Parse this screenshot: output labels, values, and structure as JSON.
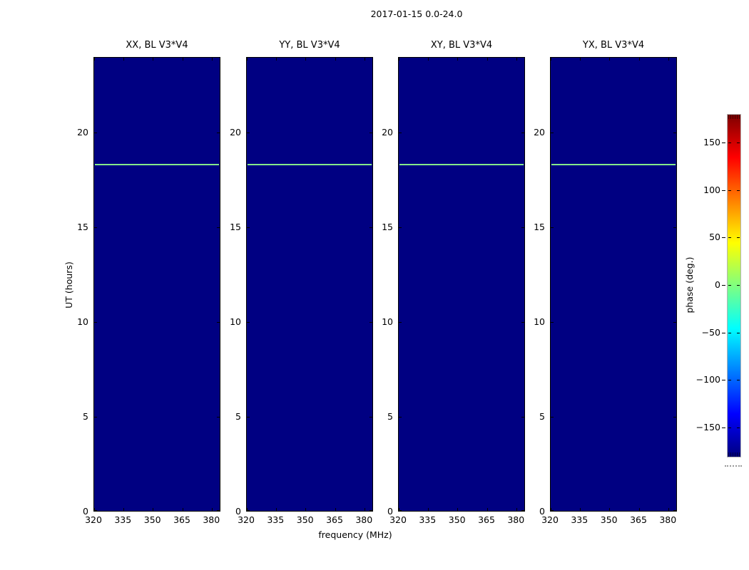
{
  "figure": {
    "title": "2017-01-15 0.0-24.0",
    "xlabel": "frequency (MHz)",
    "ylabel": "UT (hours)"
  },
  "panels": [
    {
      "title": "XX, BL V3*V4"
    },
    {
      "title": "YY, BL V3*V4"
    },
    {
      "title": "XY, BL V3*V4"
    },
    {
      "title": "YX, BL V3*V4"
    }
  ],
  "axes": {
    "x_tick_labels": [
      "320",
      "335",
      "350",
      "365",
      "380"
    ],
    "y_tick_labels": [
      "20",
      "15",
      "10",
      "5",
      "0"
    ]
  },
  "colorbar": {
    "label": "phase (deg.)",
    "tick_labels": [
      "150",
      "100",
      "50",
      "0",
      "−50",
      "−100",
      "−150"
    ],
    "colormap": "jet"
  },
  "colors": {
    "panel_background": "#000082",
    "event_line": "#85e88a",
    "colorbar_min": "#000080",
    "colorbar_max": "#7f0000"
  },
  "chart_data": {
    "type": "heatmap",
    "title": "2017-01-15 0.0-24.0",
    "xlabel": "frequency (MHz)",
    "ylabel": "UT (hours)",
    "x_range_mhz": [
      320,
      385
    ],
    "x_ticks": [
      320,
      335,
      350,
      365,
      380
    ],
    "y_range_hours": [
      0,
      24
    ],
    "y_ticks": [
      0,
      5,
      10,
      15,
      20
    ],
    "grid": false,
    "colorbar": {
      "label": "phase (deg.)",
      "ticks": [
        150,
        100,
        50,
        0,
        -50,
        -100,
        -150
      ],
      "range_deg": [
        -180,
        180
      ],
      "colormap": "jet",
      "position": "right"
    },
    "panels": [
      {
        "title": "XX, BL V3*V4",
        "uniform_phase_deg": -180,
        "feature": {
          "type": "horizontal_line",
          "ut_hours": 18.3,
          "phase_deg": 25,
          "extent_mhz": [
            320,
            385
          ]
        }
      },
      {
        "title": "YY, BL V3*V4",
        "uniform_phase_deg": -180,
        "feature": {
          "type": "horizontal_line",
          "ut_hours": 18.3,
          "phase_deg": 25,
          "extent_mhz": [
            320,
            385
          ]
        }
      },
      {
        "title": "XY, BL V3*V4",
        "uniform_phase_deg": -180,
        "feature": {
          "type": "horizontal_line",
          "ut_hours": 18.3,
          "phase_deg": 25,
          "extent_mhz": [
            320,
            385
          ]
        }
      },
      {
        "title": "YX, BL V3*V4",
        "uniform_phase_deg": -180,
        "feature": {
          "type": "horizontal_line",
          "ut_hours": 18.3,
          "phase_deg": 25,
          "extent_mhz": [
            320,
            385
          ]
        }
      }
    ]
  }
}
